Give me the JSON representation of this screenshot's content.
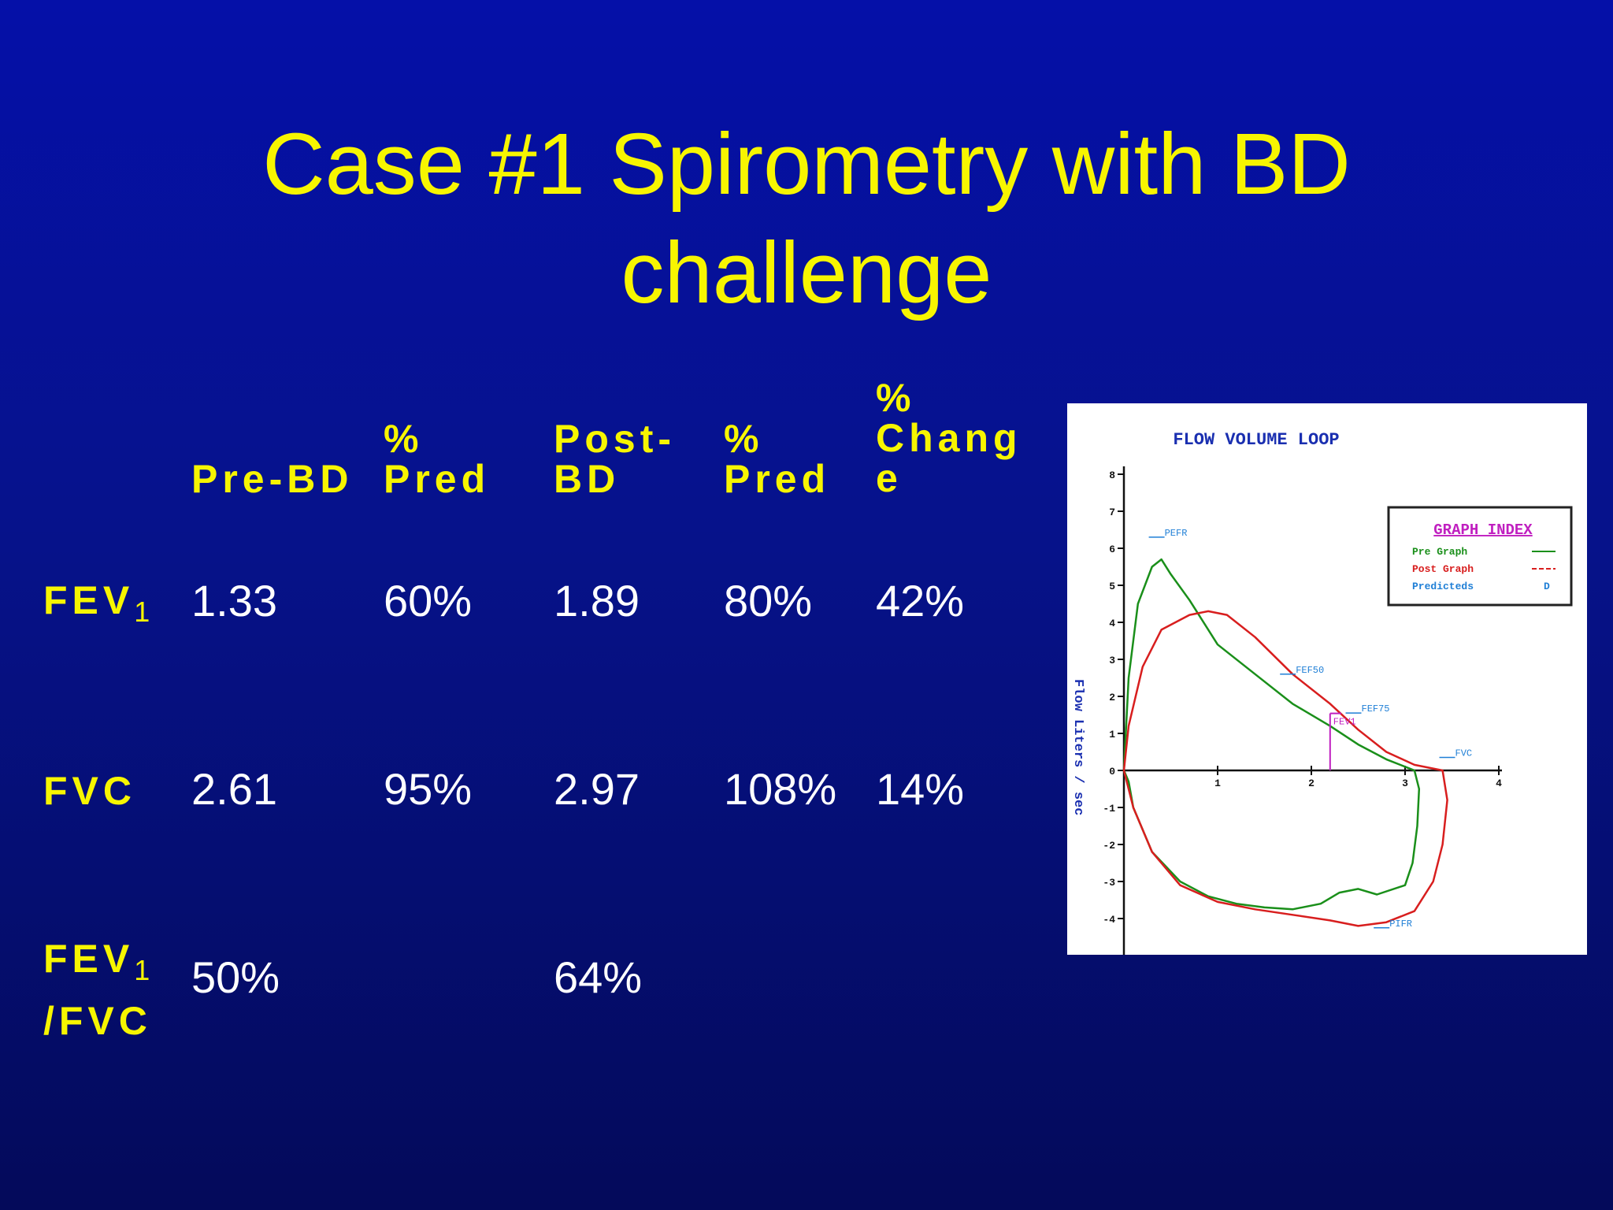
{
  "slide": {
    "title_line1": "Case #1 Spirometry with BD",
    "title_line2": "challenge"
  },
  "table": {
    "headers": [
      "Pre-BD",
      "%\nPred",
      "Post-\nBD",
      "%\nPred",
      "%\nChang\ne"
    ],
    "rows": [
      {
        "label": "FEV",
        "label_sub": "1",
        "label_line2": "",
        "values": [
          "1.33",
          "60%",
          "1.89",
          "80%",
          "42%"
        ]
      },
      {
        "label": "FVC",
        "label_sub": "",
        "label_line2": "",
        "values": [
          "2.61",
          "95%",
          "2.97",
          "108%",
          "14%"
        ]
      },
      {
        "label": "FEV",
        "label_sub": "1",
        "label_line2": "/FVC",
        "values": [
          "50%",
          "",
          "64%",
          "",
          ""
        ]
      }
    ]
  },
  "chart_data": {
    "type": "line",
    "title": "FLOW VOLUME LOOP",
    "ylabel": "Flow Liters / sec",
    "xlabel": "",
    "xlim": [
      0,
      4
    ],
    "ylim": [
      -5,
      8
    ],
    "x_ticks": [
      "1",
      "2",
      "3",
      "4"
    ],
    "y_ticks": [
      "8",
      "7",
      "6",
      "5",
      "4",
      "3",
      "2",
      "1",
      "0",
      "-1",
      "-2",
      "-3",
      "-4"
    ],
    "legend_title": "GRAPH INDEX",
    "legend": [
      {
        "label": "Pre Graph",
        "color": "#1a8f1a",
        "symbol": "solid"
      },
      {
        "label": "Post Graph",
        "color": "#d81e1e",
        "symbol": "dashed"
      },
      {
        "label": "Predicteds",
        "color": "#1f7fd6",
        "symbol": "D"
      }
    ],
    "legend_placement": "top-right",
    "series": [
      {
        "name": "Pre Graph",
        "color": "#1a8f1a",
        "points": [
          [
            0,
            0
          ],
          [
            0.05,
            2.5
          ],
          [
            0.15,
            4.5
          ],
          [
            0.3,
            5.5
          ],
          [
            0.4,
            5.7
          ],
          [
            0.5,
            5.3
          ],
          [
            0.7,
            4.6
          ],
          [
            1.0,
            3.4
          ],
          [
            1.4,
            2.6
          ],
          [
            1.8,
            1.8
          ],
          [
            2.2,
            1.2
          ],
          [
            2.5,
            0.7
          ],
          [
            2.8,
            0.3
          ],
          [
            3.0,
            0.1
          ],
          [
            3.1,
            0
          ],
          [
            3.15,
            -0.5
          ],
          [
            3.13,
            -1.5
          ],
          [
            3.08,
            -2.5
          ],
          [
            3.0,
            -3.1
          ],
          [
            2.7,
            -3.35
          ],
          [
            2.5,
            -3.2
          ],
          [
            2.3,
            -3.3
          ],
          [
            2.1,
            -3.6
          ],
          [
            1.8,
            -3.75
          ],
          [
            1.5,
            -3.7
          ],
          [
            1.2,
            -3.6
          ],
          [
            0.9,
            -3.4
          ],
          [
            0.6,
            -3.0
          ],
          [
            0.3,
            -2.2
          ],
          [
            0.1,
            -1.0
          ],
          [
            0.05,
            -0.3
          ]
        ]
      },
      {
        "name": "Post Graph",
        "color": "#d81e1e",
        "points": [
          [
            0,
            0
          ],
          [
            0.05,
            1.2
          ],
          [
            0.2,
            2.8
          ],
          [
            0.4,
            3.8
          ],
          [
            0.7,
            4.2
          ],
          [
            0.9,
            4.3
          ],
          [
            1.1,
            4.2
          ],
          [
            1.4,
            3.6
          ],
          [
            1.8,
            2.6
          ],
          [
            2.2,
            1.8
          ],
          [
            2.5,
            1.1
          ],
          [
            2.8,
            0.5
          ],
          [
            3.1,
            0.15
          ],
          [
            3.4,
            0
          ],
          [
            3.45,
            -0.8
          ],
          [
            3.4,
            -2.0
          ],
          [
            3.3,
            -3.0
          ],
          [
            3.1,
            -3.8
          ],
          [
            2.8,
            -4.1
          ],
          [
            2.5,
            -4.2
          ],
          [
            2.2,
            -4.05
          ],
          [
            1.8,
            -3.9
          ],
          [
            1.4,
            -3.75
          ],
          [
            1.0,
            -3.55
          ],
          [
            0.6,
            -3.1
          ],
          [
            0.3,
            -2.2
          ],
          [
            0.1,
            -1.0
          ]
        ]
      }
    ],
    "markers": [
      {
        "label": "PEFR",
        "x": 0.4,
        "y": 6.3,
        "color": "#1f7fd6"
      },
      {
        "label": "FEF50",
        "x": 1.8,
        "y": 2.6,
        "color": "#1f7fd6"
      },
      {
        "label": "FEF75",
        "x": 2.5,
        "y": 1.55,
        "color": "#1f7fd6"
      },
      {
        "label": "FEV1",
        "x": 2.2,
        "y": 1.2,
        "color": "#c01fc0"
      },
      {
        "label": "FVC",
        "x": 3.5,
        "y": 0.35,
        "color": "#1f7fd6"
      },
      {
        "label": "PIFR",
        "x": 2.8,
        "y": -4.25,
        "color": "#1f7fd6"
      }
    ]
  }
}
